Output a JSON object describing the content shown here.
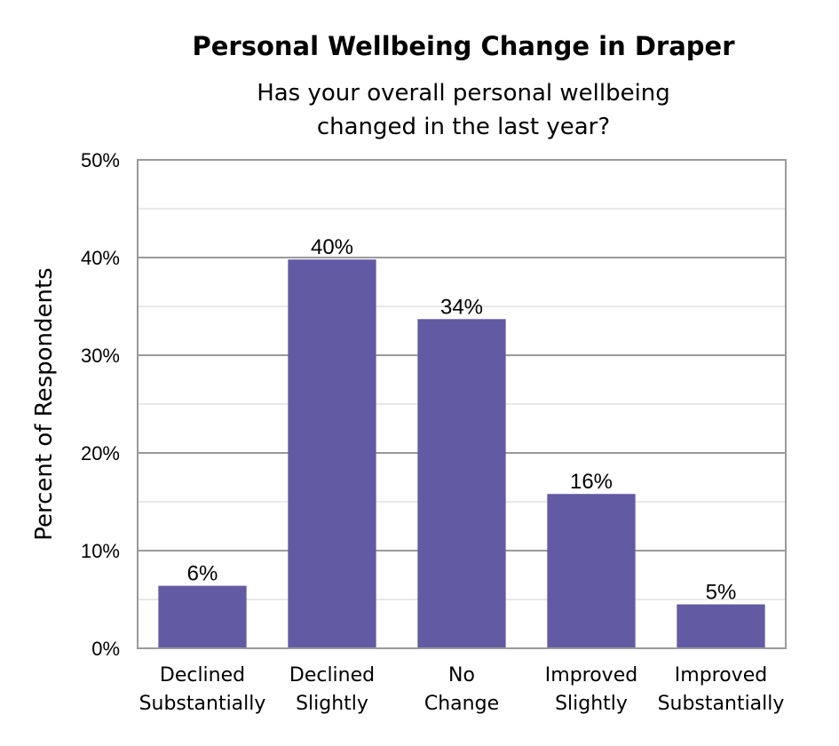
{
  "chart_data": {
    "type": "bar",
    "title": "Personal Wellbeing Change in Draper",
    "subtitle": [
      "Has your overall personal wellbeing",
      "changed in the last year?"
    ],
    "ylabel": "Percent of Respondents",
    "xlabel": "",
    "ylim": [
      0,
      50
    ],
    "yticks": [
      "0%",
      "10%",
      "20%",
      "30%",
      "40%",
      "50%"
    ],
    "categories": [
      [
        "Declined",
        "Substantially"
      ],
      [
        "Declined",
        "Slightly"
      ],
      [
        "No",
        "Change"
      ],
      [
        "Improved",
        "Slightly"
      ],
      [
        "Improved",
        "Substantially"
      ]
    ],
    "values": [
      6.4,
      39.8,
      33.7,
      15.8,
      4.5
    ],
    "data_labels": [
      "6%",
      "40%",
      "34%",
      "16%",
      "5%"
    ],
    "bar_color": "#635aa4",
    "grid": true,
    "legend": "none"
  }
}
